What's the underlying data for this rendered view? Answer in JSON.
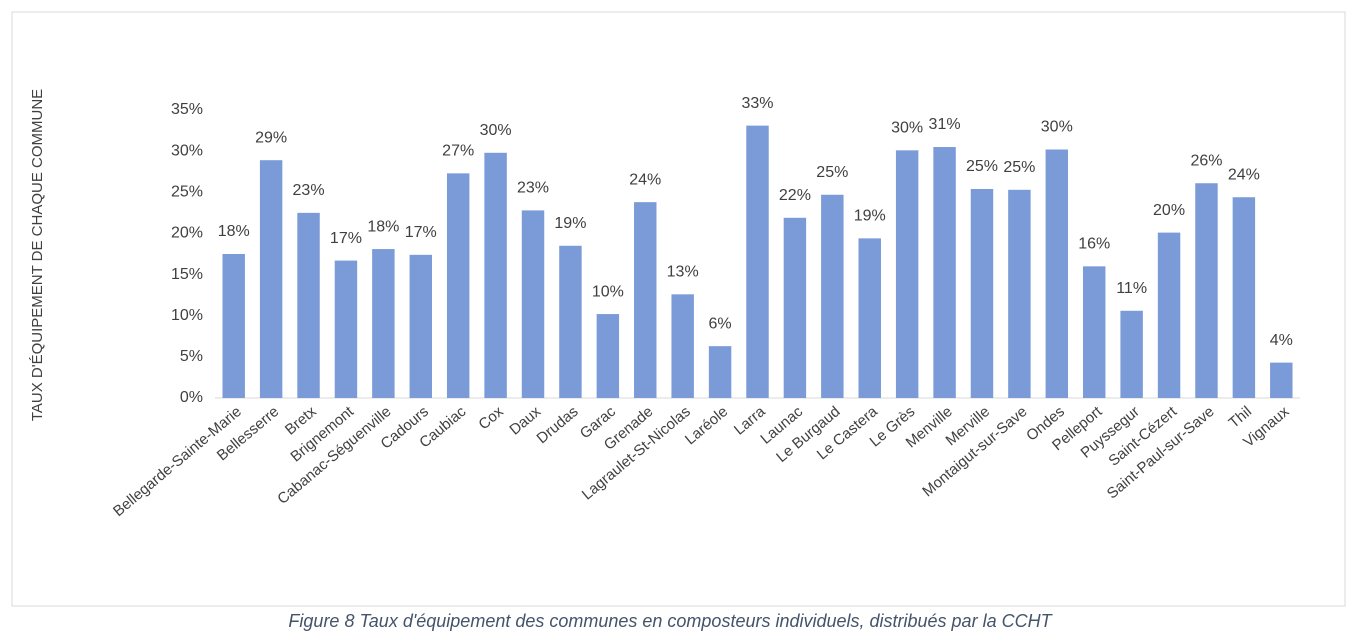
{
  "chart_data": {
    "type": "bar",
    "y_label": "TAUX D'ÉQUIPEMENT DE CHAQUE COMMUNE",
    "caption": "Figure 8 Taux d'équipement des communes en composteurs individuels, distribués par la CCHT",
    "categories": [
      "Bellegarde-Sainte-Marie",
      "Bellesserre",
      "Bretx",
      "Brignemont",
      "Cabanac-Séguenville",
      "Cadours",
      "Caubiac",
      "Cox",
      "Daux",
      "Drudas",
      "Garac",
      "Grenade",
      "Lagraulet-St-Nicolas",
      "Laréole",
      "Larra",
      "Launac",
      "Le Burgaud",
      "Le Castera",
      "Le Grès",
      "Menville",
      "Merville",
      "Montaigut-sur-Save",
      "Ondes",
      "Pelleport",
      "Puyssegur",
      "Saint-Cézert",
      "Saint-Paul-sur-Save",
      "Thil",
      "Vignaux"
    ],
    "values": [
      17.5,
      28.9,
      22.5,
      16.7,
      18.1,
      17.4,
      27.3,
      29.8,
      22.8,
      18.5,
      10.2,
      23.8,
      12.6,
      6.3,
      33.1,
      21.9,
      24.7,
      19.4,
      30.1,
      30.5,
      25.4,
      25.3,
      30.2,
      16.0,
      10.6,
      20.1,
      26.1,
      24.4,
      4.3
    ],
    "value_labels": [
      "18%",
      "29%",
      "23%",
      "17%",
      "18%",
      "17%",
      "27%",
      "30%",
      "23%",
      "19%",
      "10%",
      "24%",
      "13%",
      "6%",
      "33%",
      "22%",
      "25%",
      "19%",
      "30%",
      "31%",
      "25%",
      "25%",
      "30%",
      "16%",
      "11%",
      "20%",
      "26%",
      "24%",
      "4%"
    ],
    "color": "#7a9bd8",
    "ylim": [
      0,
      35
    ],
    "yticks": [
      {
        "value": 0,
        "label": "0%"
      },
      {
        "value": 5,
        "label": "5%"
      },
      {
        "value": 10,
        "label": "10%"
      },
      {
        "value": 15,
        "label": "15%"
      },
      {
        "value": 20,
        "label": "20%"
      },
      {
        "value": 25,
        "label": "25%"
      },
      {
        "value": 30,
        "label": "30%"
      },
      {
        "value": 35,
        "label": "35%"
      }
    ],
    "grid": false
  }
}
